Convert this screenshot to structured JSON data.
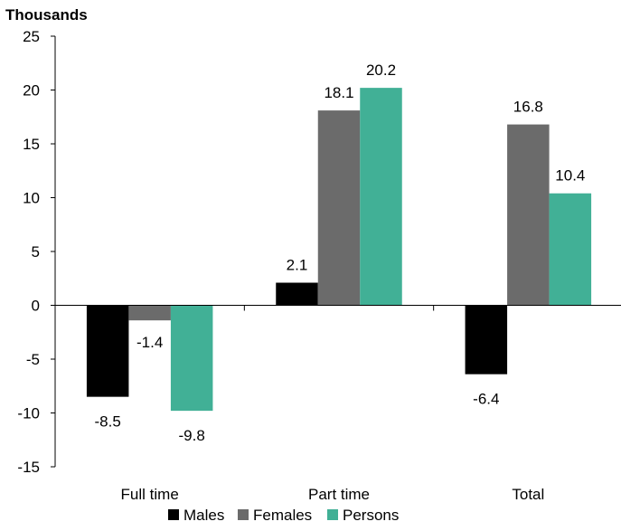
{
  "chart_data": {
    "type": "bar",
    "unit_label": "Thousands",
    "categories": [
      "Full time",
      "Part time",
      "Total"
    ],
    "series": [
      {
        "name": "Males",
        "values": [
          -8.5,
          2.1,
          -6.4
        ],
        "color": "#000000"
      },
      {
        "name": "Females",
        "values": [
          -1.4,
          18.1,
          16.8
        ],
        "color": "#6b6b6b"
      },
      {
        "name": "Persons",
        "values": [
          -9.8,
          20.2,
          10.4
        ],
        "color": "#41b096"
      }
    ],
    "ylim": [
      -15,
      25
    ],
    "yticks": [
      25,
      20,
      15,
      10,
      5,
      0,
      -5,
      -10,
      -15
    ],
    "legend_position": "bottom",
    "grid": false
  }
}
